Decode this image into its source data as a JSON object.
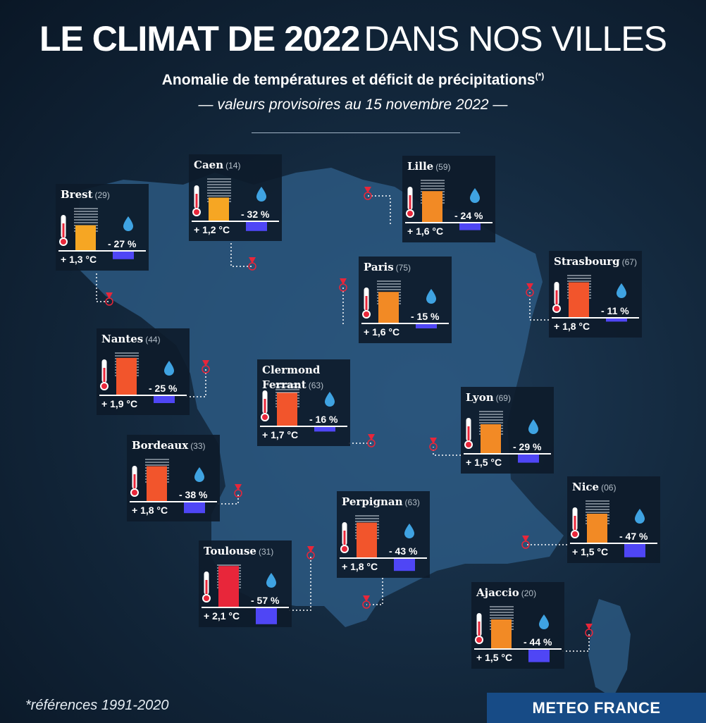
{
  "header": {
    "title_bold": "LE CLIMAT DE 2022",
    "title_light": "DANS NOS VILLES",
    "subtitle": "Anomalie de températures et déficit de précipitations",
    "subtitle_sup": "(*)",
    "subtitle2": "— valeurs provisoires au 15 novembre 2022 —"
  },
  "footer": {
    "footnote": "*références 1991-2020",
    "brand": "METEO FRANCE"
  },
  "colors": {
    "temp_low": "#f6a623",
    "temp_mid": "#f28a25",
    "temp_high": "#f2552c",
    "temp_max": "#e8263a",
    "precip_bar": "#4f46f5",
    "drop": "#3fa3e2",
    "marker": "#e8263a"
  },
  "chart_data": {
    "type": "bar",
    "units": {
      "temperature": "°C",
      "precipitation": "%"
    },
    "series": [
      {
        "name": "Anomalie de températures",
        "unit": "°C"
      },
      {
        "name": "Déficit de précipitations",
        "unit": "%"
      }
    ],
    "cities": [
      {
        "name": "Brest",
        "code": "(29)",
        "temp": 1.3,
        "temp_label": "+ 1,3 °C",
        "precip": -27,
        "precip_label": "- 27 %"
      },
      {
        "name": "Caen",
        "code": "(14)",
        "temp": 1.2,
        "temp_label": "+ 1,2 °C",
        "precip": -32,
        "precip_label": "- 32 %"
      },
      {
        "name": "Lille",
        "code": "(59)",
        "temp": 1.6,
        "temp_label": "+ 1,6 °C",
        "precip": -24,
        "precip_label": "- 24 %"
      },
      {
        "name": "Paris",
        "code": "(75)",
        "temp": 1.6,
        "temp_label": "+ 1,6 °C",
        "precip": -15,
        "precip_label": "- 15 %"
      },
      {
        "name": "Strasbourg",
        "code": "(67)",
        "temp": 1.8,
        "temp_label": "+ 1,8 °C",
        "precip": -11,
        "precip_label": "- 11 %"
      },
      {
        "name": "Nantes",
        "code": "(44)",
        "temp": 1.9,
        "temp_label": "+ 1,9 °C",
        "precip": -25,
        "precip_label": "- 25 %"
      },
      {
        "name": "Clermond Ferrant",
        "code": "(63)",
        "temp": 1.7,
        "temp_label": "+ 1,7 °C",
        "precip": -16,
        "precip_label": "- 16 %"
      },
      {
        "name": "Lyon",
        "code": "(69)",
        "temp": 1.5,
        "temp_label": "+ 1,5 °C",
        "precip": -29,
        "precip_label": "- 29 %"
      },
      {
        "name": "Bordeaux",
        "code": "(33)",
        "temp": 1.8,
        "temp_label": "+ 1,8 °C",
        "precip": -38,
        "precip_label": "- 38 %"
      },
      {
        "name": "Perpignan",
        "code": "(63)",
        "temp": 1.8,
        "temp_label": "+ 1,8 °C",
        "precip": -43,
        "precip_label": "- 43 %"
      },
      {
        "name": "Nice",
        "code": "(06)",
        "temp": 1.5,
        "temp_label": "+ 1,5 °C",
        "precip": -47,
        "precip_label": "- 47 %"
      },
      {
        "name": "Toulouse",
        "code": "(31)",
        "temp": 2.1,
        "temp_label": "+ 2,1 °C",
        "precip": -57,
        "precip_label": "- 57 %"
      },
      {
        "name": "Ajaccio",
        "code": "(20)",
        "temp": 1.5,
        "temp_label": "+ 1,5 °C",
        "precip": -44,
        "precip_label": "- 44 %"
      }
    ]
  }
}
